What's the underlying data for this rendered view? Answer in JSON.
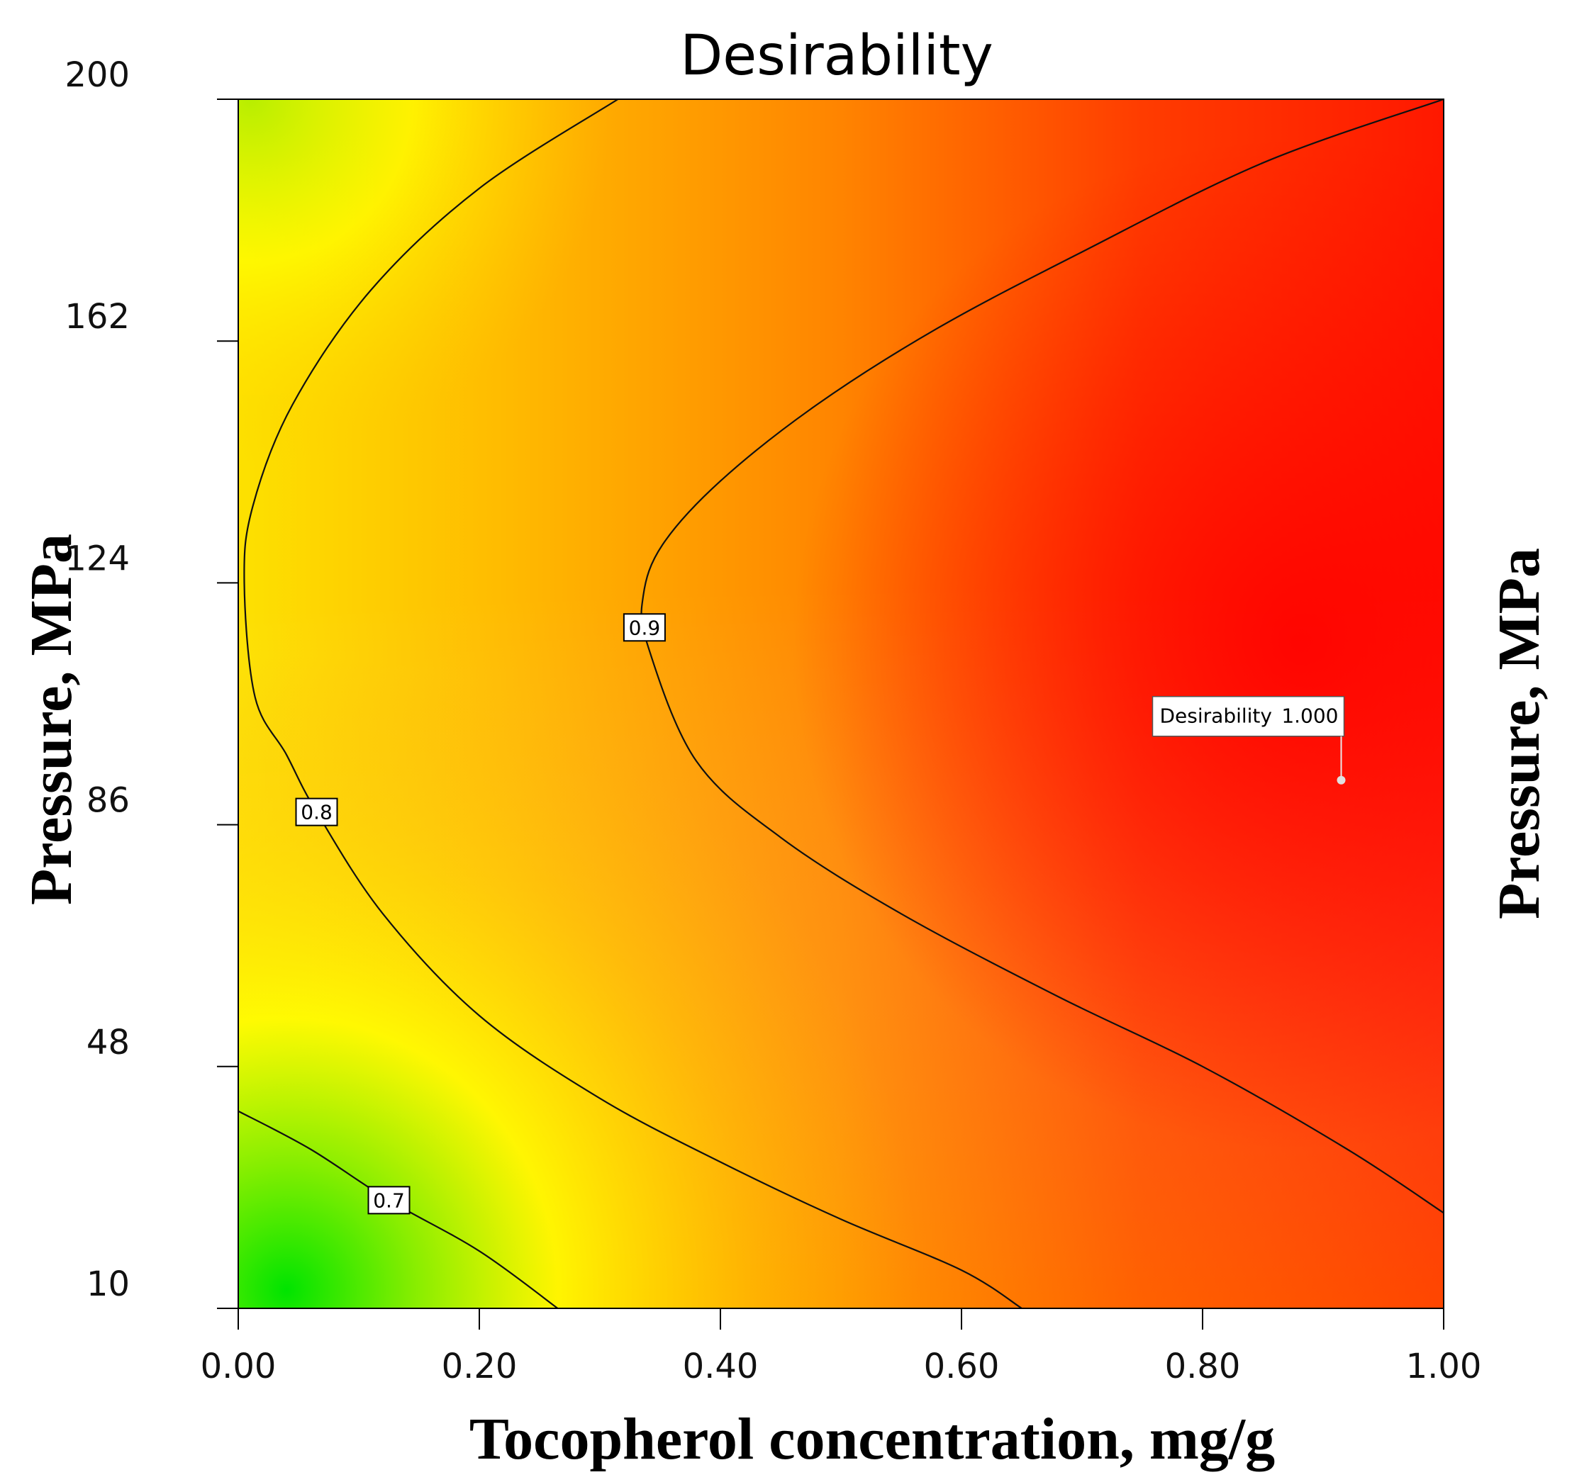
{
  "chart_data": {
    "type": "contour",
    "title": "Desirability",
    "xlabel": "Tocopherol concentration, mg/g",
    "ylabel": "Pressure, MPa",
    "ylabel_right": "Pressure, MPa",
    "xlim": [
      0,
      1
    ],
    "ylim": [
      10,
      200
    ],
    "x_ticks": [
      0,
      0.2,
      0.4,
      0.6,
      0.8,
      1.0
    ],
    "x_tick_labels": [
      "0.00",
      "0.20",
      "0.40",
      "0.60",
      "0.80",
      "1.00"
    ],
    "y_ticks": [
      10,
      48,
      86,
      124,
      162,
      200
    ],
    "y_tick_labels": [
      "10",
      "48",
      "86",
      "124",
      "162",
      "200"
    ],
    "colormap": [
      "#00e000",
      "#ffff00",
      "#ffa000",
      "#ff0000"
    ],
    "contours": [
      {
        "level": 0.7,
        "label": "0.7",
        "label_at": [
          0.125,
          27
        ],
        "points": [
          [
            0,
            41
          ],
          [
            0.06,
            35
          ],
          [
            0.125,
            27
          ],
          [
            0.2,
            19
          ],
          [
            0.265,
            10
          ]
        ]
      },
      {
        "level": 0.8,
        "label": "0.8",
        "label_at": [
          0.065,
          88
        ],
        "points": [
          [
            0.315,
            200
          ],
          [
            0.2,
            186
          ],
          [
            0.11,
            170
          ],
          [
            0.045,
            152
          ],
          [
            0.012,
            136
          ],
          [
            0.005,
            124
          ],
          [
            0.014,
            106
          ],
          [
            0.04,
            97
          ],
          [
            0.065,
            88
          ],
          [
            0.12,
            72
          ],
          [
            0.2,
            56
          ],
          [
            0.3,
            43
          ],
          [
            0.4,
            33
          ],
          [
            0.5,
            24
          ],
          [
            0.6,
            16
          ],
          [
            0.65,
            10
          ]
        ]
      },
      {
        "level": 0.9,
        "label": "0.9",
        "label_at": [
          0.337,
          117
        ],
        "points": [
          [
            1.0,
            200
          ],
          [
            0.85,
            190
          ],
          [
            0.7,
            176
          ],
          [
            0.58,
            164
          ],
          [
            0.48,
            152
          ],
          [
            0.4,
            140
          ],
          [
            0.352,
            130
          ],
          [
            0.336,
            122
          ],
          [
            0.34,
            114
          ],
          [
            0.38,
            96
          ],
          [
            0.45,
            84
          ],
          [
            0.55,
            72
          ],
          [
            0.68,
            59
          ],
          [
            0.8,
            48
          ],
          [
            0.92,
            35
          ],
          [
            1.0,
            25
          ]
        ]
      }
    ],
    "optimum": {
      "label": "Desirability",
      "value": "1.000",
      "x": 0.915,
      "y": 93
    }
  }
}
